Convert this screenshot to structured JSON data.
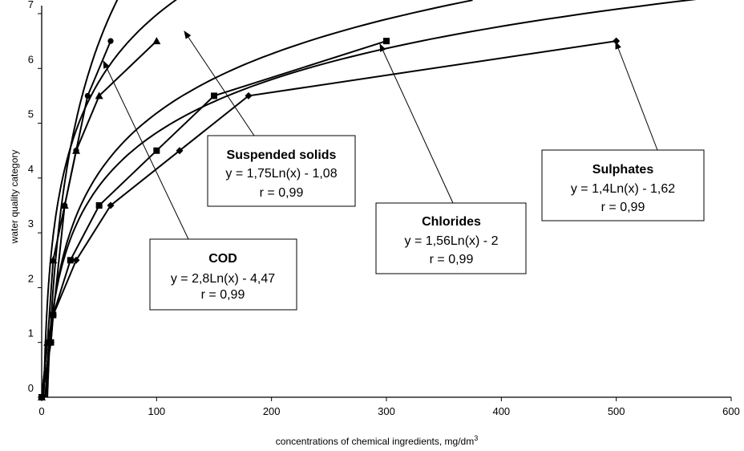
{
  "chart_data": {
    "type": "scatter",
    "title": "",
    "xlabel": "concentrations of chemical ingredients, mg/dm",
    "xlabel_sup": "3",
    "ylabel": "water quality category",
    "xlim": [
      0,
      600
    ],
    "ylim": [
      0,
      7
    ],
    "x_ticks": [
      "0",
      "100",
      "200",
      "300",
      "400",
      "500",
      "600"
    ],
    "y_ticks": [
      "0",
      "1",
      "2",
      "3",
      "4",
      "5",
      "6",
      "7"
    ],
    "grid": false,
    "series": [
      {
        "name": "COD",
        "marker": "circle",
        "points": [
          [
            0,
            0
          ],
          [
            5,
            1
          ],
          [
            10,
            1.5
          ],
          [
            20,
            3.5
          ],
          [
            30,
            4.5
          ],
          [
            40,
            5.5
          ],
          [
            60,
            6.5
          ]
        ],
        "fit": {
          "a": 2.8,
          "b": -4.47,
          "x_from": 4.93,
          "x_to": 72
        },
        "equation": "y = 2,8Ln(x) - 4,47",
        "r": "r = 0,99"
      },
      {
        "name": "Suspended solids",
        "marker": "triangle",
        "points": [
          [
            0,
            0
          ],
          [
            5,
            1
          ],
          [
            10,
            2.5
          ],
          [
            20,
            3.5
          ],
          [
            30,
            4.5
          ],
          [
            50,
            5.5
          ],
          [
            100,
            6.5
          ]
        ],
        "fit": {
          "a": 1.75,
          "b": -1.08,
          "x_from": 1.86,
          "x_to": 138
        },
        "equation": "y = 1,75Ln(x) - 1,08",
        "r": "r = 0,99"
      },
      {
        "name": "Chlorides",
        "marker": "square",
        "points": [
          [
            0,
            0
          ],
          [
            8,
            1
          ],
          [
            10,
            1.5
          ],
          [
            25,
            2.5
          ],
          [
            50,
            3.5
          ],
          [
            100,
            4.5
          ],
          [
            150,
            5.5
          ],
          [
            300,
            6.5
          ]
        ],
        "fit": {
          "a": 1.56,
          "b": -2.0,
          "x_from": 3.6,
          "x_to": 375
        },
        "equation": "y = 1,56Ln(x) - 2",
        "r": "r = 0,99"
      },
      {
        "name": "Sulphates",
        "marker": "diamond",
        "points": [
          [
            0,
            0
          ],
          [
            8,
            1
          ],
          [
            10,
            1.5
          ],
          [
            30,
            2.5
          ],
          [
            60,
            3.5
          ],
          [
            120,
            4.5
          ],
          [
            180,
            5.5
          ],
          [
            500,
            6.5
          ]
        ],
        "fit": {
          "a": 1.4,
          "b": -1.62,
          "x_from": 3.18,
          "x_to": 590
        },
        "equation": "y = 1,4Ln(x) - 1,62",
        "r": "r = 0,99"
      }
    ]
  }
}
